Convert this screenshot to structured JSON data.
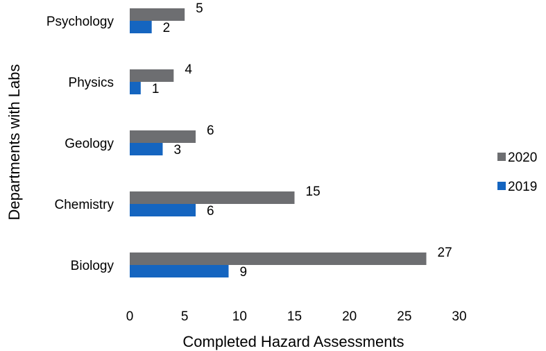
{
  "chart_data": {
    "type": "bar",
    "orientation": "horizontal",
    "categories": [
      "Psychology",
      "Physics",
      "Geology",
      "Chemistry",
      "Biology"
    ],
    "series": [
      {
        "name": "2020",
        "values": [
          5,
          4,
          6,
          15,
          27
        ],
        "color": "#6d6e71"
      },
      {
        "name": "2019",
        "values": [
          2,
          1,
          3,
          6,
          9
        ],
        "color": "#1565c0"
      }
    ],
    "xlabel": "Completed Hazard Assessments",
    "ylabel": "Departments with Labs",
    "xlim": [
      0,
      30
    ],
    "xticks": [
      0,
      5,
      10,
      15,
      20,
      25,
      30
    ],
    "grid": false,
    "legend": "right",
    "data_labels": true
  }
}
